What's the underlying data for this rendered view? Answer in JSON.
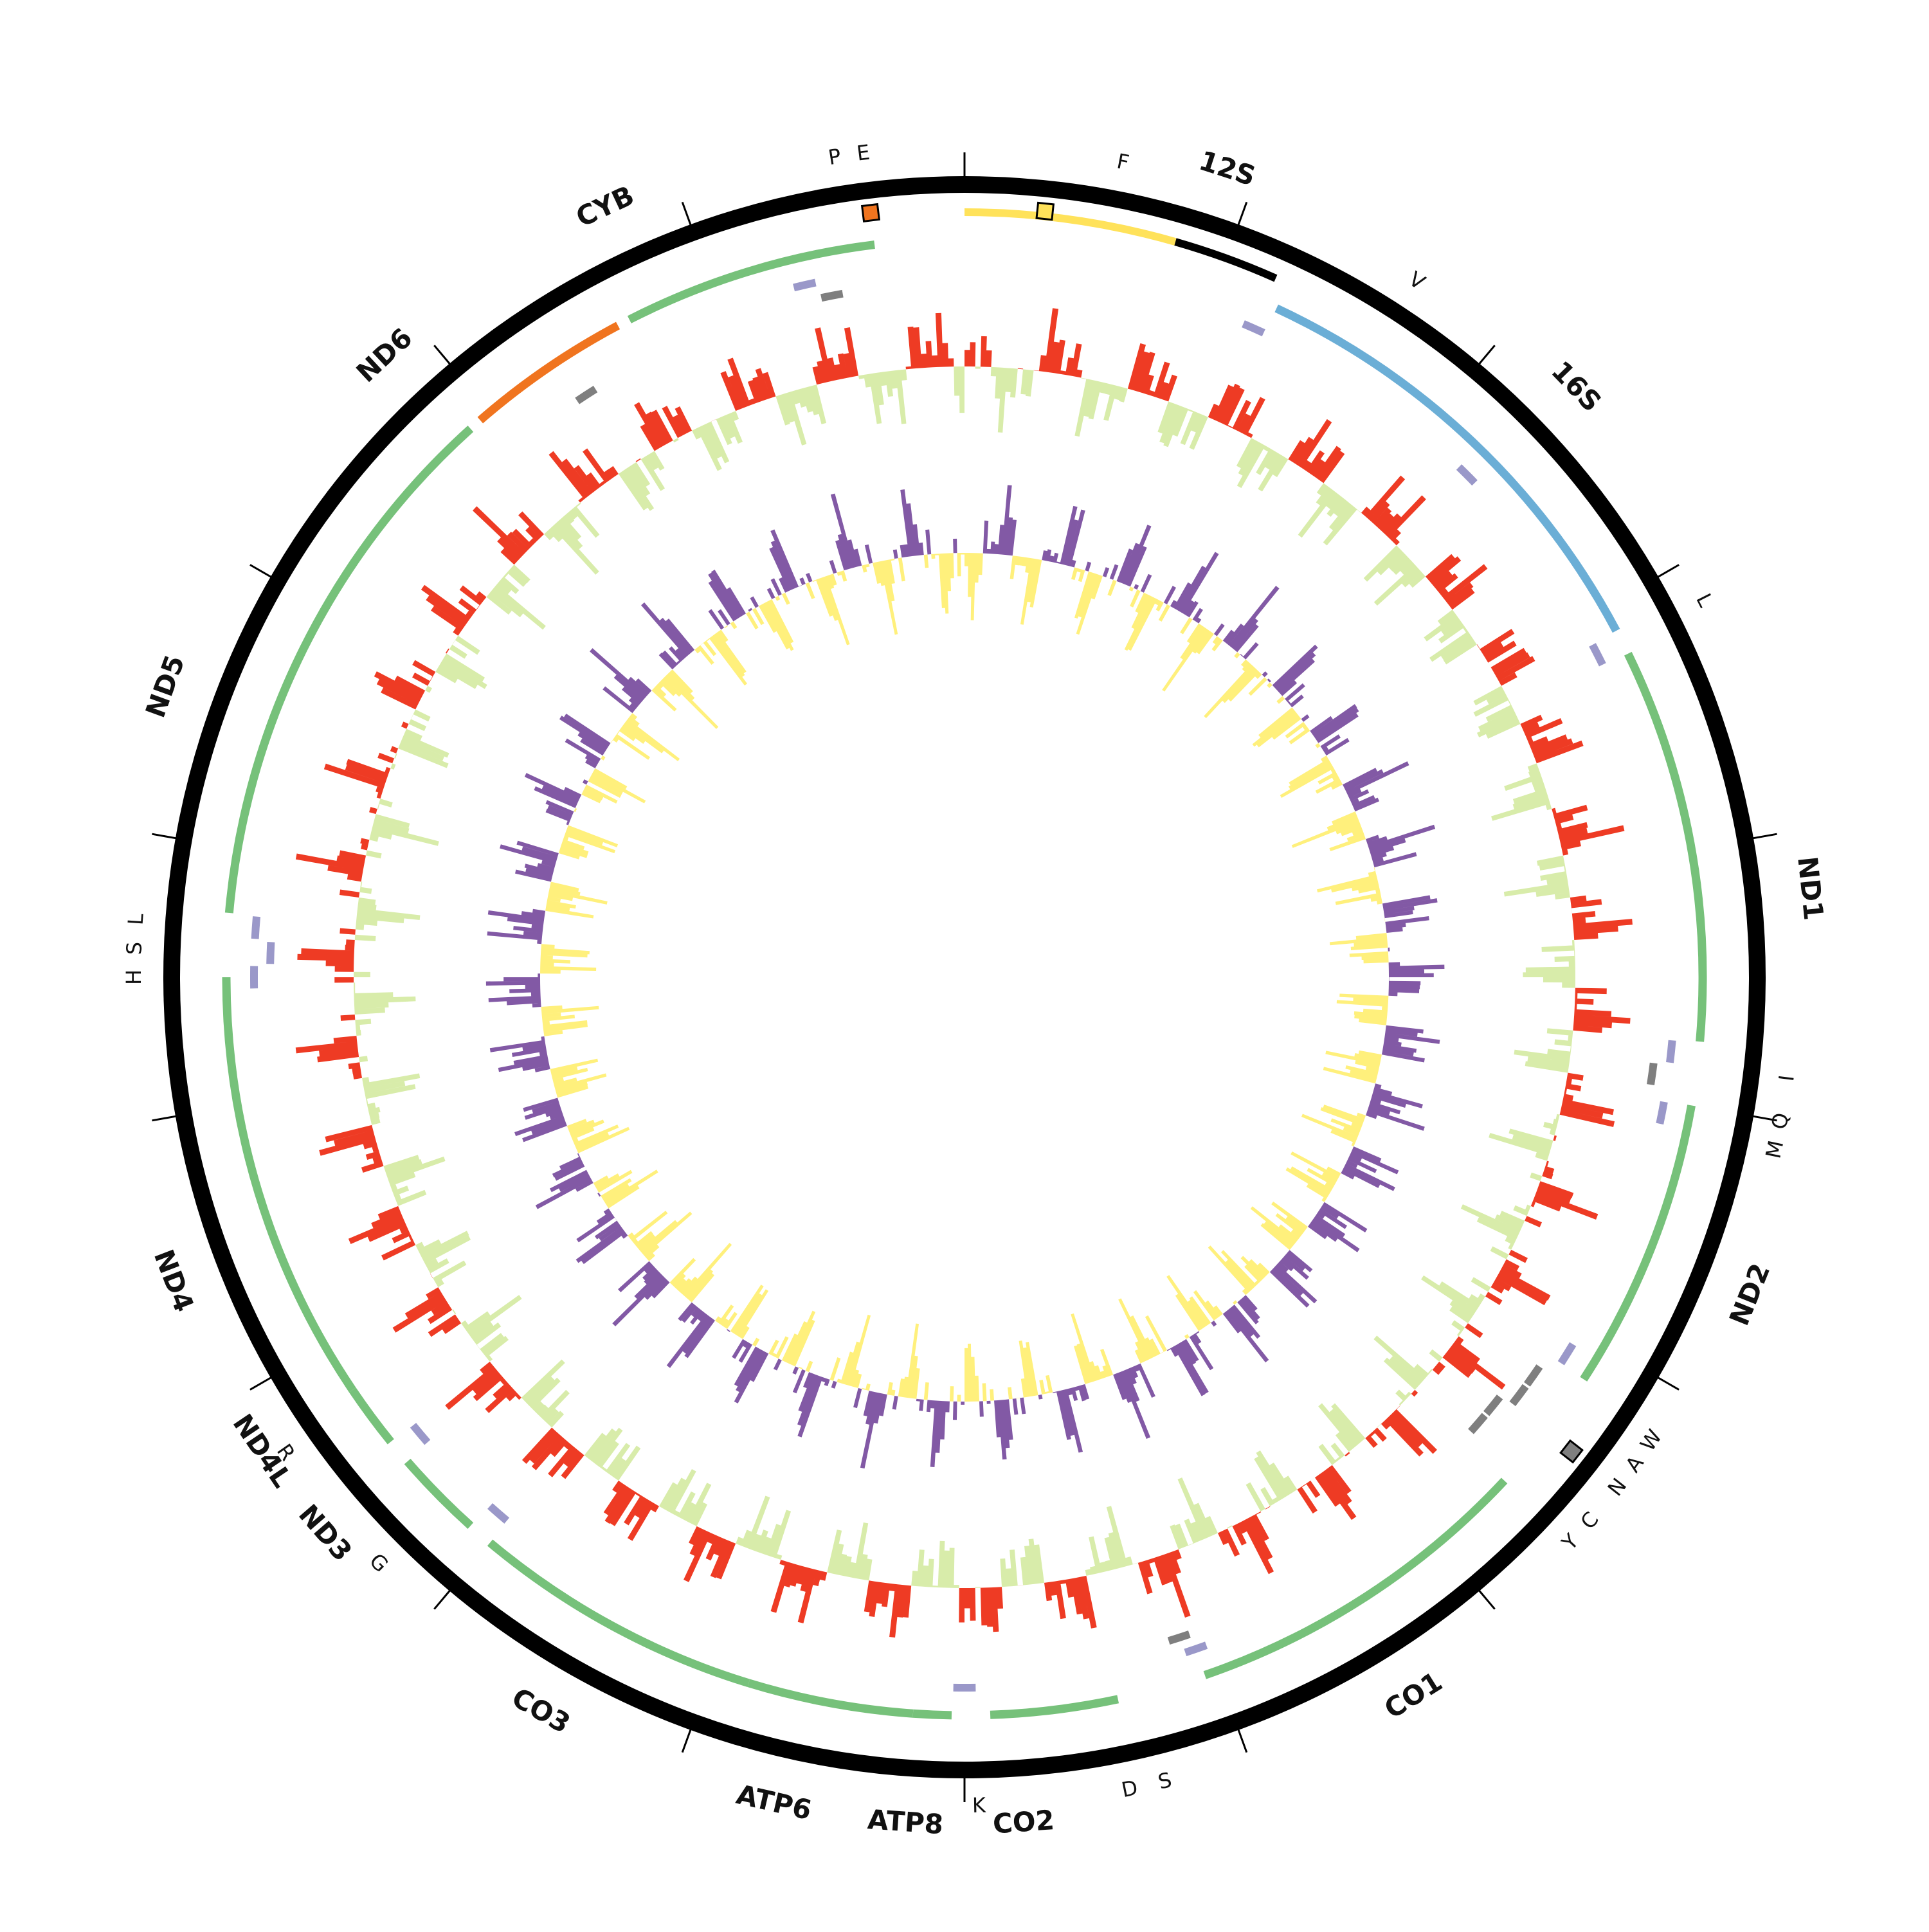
{
  "map": {
    "colors": {
      "backbone": "#000000",
      "protein_coding": "#76c17a",
      "rrna": "#6baed6",
      "nd6": "#f0741f",
      "trna": "#9a98c9",
      "trna_dark": "#7f7f7f",
      "control_region": "#ffe25a",
      "control_black": "#000000",
      "gc_skew_pos": "#ee3b24",
      "gc_skew_neg": "#d8ecaa",
      "at_skew_pos": "#8259a5",
      "at_skew_neg": "#fff07c"
    },
    "gene_labels": [
      {
        "text": "12S",
        "angle": 18
      },
      {
        "text": "16S",
        "angle": 46
      },
      {
        "text": "ND1",
        "angle": 84
      },
      {
        "text": "ND2",
        "angle": 112
      },
      {
        "text": "CO1",
        "angle": 148
      },
      {
        "text": "CO2",
        "angle": 176
      },
      {
        "text": "ATP8",
        "angle": 184
      },
      {
        "text": "ATP6",
        "angle": 193
      },
      {
        "text": "CO3",
        "angle": 210
      },
      {
        "text": "ND3",
        "angle": 229
      },
      {
        "text": "ND4L",
        "angle": 236
      },
      {
        "text": "ND4",
        "angle": 249
      },
      {
        "text": "ND5",
        "angle": 290
      },
      {
        "text": "ND6",
        "angle": 317
      },
      {
        "text": "CYB",
        "angle": 335
      }
    ],
    "trna_labels": [
      {
        "text": "F",
        "angle": 11
      },
      {
        "text": "V",
        "angle": 33
      },
      {
        "text": "L",
        "angle": 63
      },
      {
        "text": "I",
        "angle": 97
      },
      {
        "text": "Q",
        "angle": 100
      },
      {
        "text": "M",
        "angle": 102
      },
      {
        "text": "W",
        "angle": 124
      },
      {
        "text": "A",
        "angle": 126
      },
      {
        "text": "N",
        "angle": 128
      },
      {
        "text": "C",
        "angle": 131
      },
      {
        "text": "Y",
        "angle": 133
      },
      {
        "text": "S",
        "angle": 166
      },
      {
        "text": "D",
        "angle": 168.5
      },
      {
        "text": "K",
        "angle": 179
      },
      {
        "text": "G",
        "angle": 225
      },
      {
        "text": "R",
        "angle": 235
      },
      {
        "text": "H",
        "angle": 270
      },
      {
        "text": "S",
        "angle": 272
      },
      {
        "text": "L",
        "angle": 274
      },
      {
        "text": "P",
        "angle": 351
      },
      {
        "text": "E",
        "angle": 353
      }
    ],
    "tick_angles": [
      0,
      20,
      40,
      60,
      80,
      100,
      120,
      140,
      160,
      180,
      200,
      220,
      240,
      260,
      280,
      300,
      320,
      340
    ],
    "arcs": [
      {
        "name": "control-region",
        "start": 0,
        "end": 16,
        "ring": "control",
        "color": "control_region"
      },
      {
        "name": "control-black",
        "start": 16,
        "end": 24,
        "ring": "control",
        "color": "control_black"
      },
      {
        "name": "12S-16S",
        "start": 25,
        "end": 62,
        "ring": "outer",
        "color": "rrna"
      },
      {
        "name": "ND1",
        "start": 64,
        "end": 95,
        "ring": "outer",
        "color": "protein_coding"
      },
      {
        "name": "ND2",
        "start": 100,
        "end": 123,
        "ring": "outer",
        "color": "protein_coding"
      },
      {
        "name": "CO1",
        "start": 133,
        "end": 161,
        "ring": "outer",
        "color": "protein_coding"
      },
      {
        "name": "CO2",
        "start": 168,
        "end": 178,
        "ring": "outer",
        "color": "protein_coding"
      },
      {
        "name": "ATP8",
        "start": 181,
        "end": 184,
        "ring": "outer",
        "color": "protein_coding"
      },
      {
        "name": "ATP6",
        "start": 184,
        "end": 197,
        "ring": "outer",
        "color": "protein_coding"
      },
      {
        "name": "CO3",
        "start": 197,
        "end": 220,
        "ring": "outer",
        "color": "protein_coding"
      },
      {
        "name": "ND3",
        "start": 222,
        "end": 229,
        "ring": "outer",
        "color": "protein_coding"
      },
      {
        "name": "ND4L",
        "start": 231,
        "end": 236,
        "ring": "outer",
        "color": "protein_coding"
      },
      {
        "name": "ND4",
        "start": 236,
        "end": 270,
        "ring": "outer",
        "color": "protein_coding"
      },
      {
        "name": "ND5",
        "start": 275,
        "end": 318,
        "ring": "outer",
        "color": "protein_coding"
      },
      {
        "name": "ND6",
        "start": 319,
        "end": 332,
        "ring": "outer",
        "color": "nd6"
      },
      {
        "name": "CYB",
        "start": 333,
        "end": 353,
        "ring": "outer",
        "color": "protein_coding"
      }
    ],
    "trna_marks": [
      {
        "angle": 24,
        "ring": "inner",
        "color": "trna"
      },
      {
        "angle": 45,
        "ring": "inner",
        "color": "trna"
      },
      {
        "angle": 63,
        "ring": "inner",
        "color": "trna"
      },
      {
        "angle": 96,
        "ring": "inner",
        "color": "trna"
      },
      {
        "angle": 98,
        "ring": "inner2",
        "color": "trna_dark"
      },
      {
        "angle": 101,
        "ring": "inner",
        "color": "trna"
      },
      {
        "angle": 122,
        "ring": "inner",
        "color": "trna"
      },
      {
        "angle": 125,
        "ring": "inner2",
        "color": "trna_dark"
      },
      {
        "angle": 127,
        "ring": "inner2",
        "color": "trna_dark"
      },
      {
        "angle": 129,
        "ring": "inner3",
        "color": "trna_dark"
      },
      {
        "angle": 131,
        "ring": "inner3",
        "color": "trna_dark"
      },
      {
        "angle": 161,
        "ring": "inner",
        "color": "trna"
      },
      {
        "angle": 162,
        "ring": "inner2",
        "color": "trna_dark"
      },
      {
        "angle": 180,
        "ring": "inner",
        "color": "trna"
      },
      {
        "angle": 221,
        "ring": "inner",
        "color": "trna"
      },
      {
        "angle": 230,
        "ring": "inner",
        "color": "trna"
      },
      {
        "angle": 270,
        "ring": "inner",
        "color": "trna"
      },
      {
        "angle": 272,
        "ring": "inner2",
        "color": "trna"
      },
      {
        "angle": 274,
        "ring": "inner",
        "color": "trna"
      },
      {
        "angle": 327,
        "ring": "inner2",
        "color": "trna_dark"
      },
      {
        "angle": 347,
        "ring": "inner",
        "color": "trna"
      },
      {
        "angle": 349,
        "ring": "inner2",
        "color": "trna_dark"
      }
    ],
    "boxes": [
      {
        "name": "control-box",
        "angle": 6,
        "color": "control_region"
      },
      {
        "name": "origin-box",
        "angle": 353,
        "color": "nd6"
      },
      {
        "name": "light-strand-box",
        "angle": 128,
        "color": "trna_dark"
      }
    ]
  }
}
